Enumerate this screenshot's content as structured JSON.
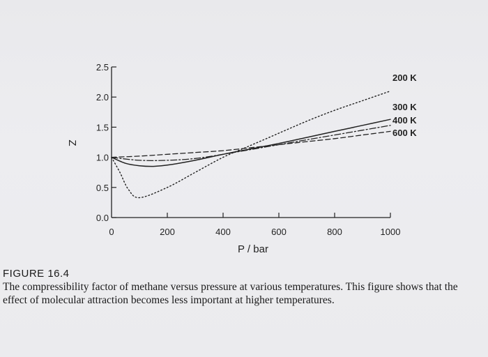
{
  "chart_data": {
    "type": "line",
    "xlabel": "P / bar",
    "ylabel": "Z",
    "xlim": [
      0,
      1000
    ],
    "ylim": [
      0,
      2.5
    ],
    "x_ticks": [
      "0",
      "200",
      "400",
      "600",
      "800",
      "1000"
    ],
    "y_ticks": [
      "0.0",
      "0.5",
      "1.0",
      "1.5",
      "2.0",
      "2.5"
    ],
    "grid": false,
    "series": [
      {
        "name": "200 K",
        "style": "dotted",
        "x": [
          0,
          30,
          60,
          100,
          200,
          300,
          400,
          500,
          600,
          700,
          800,
          900,
          1000
        ],
        "y": [
          1.0,
          0.75,
          0.47,
          0.33,
          0.5,
          0.75,
          1.0,
          1.2,
          1.4,
          1.6,
          1.78,
          1.94,
          2.1
        ]
      },
      {
        "name": "300 K",
        "style": "solid",
        "x": [
          0,
          50,
          100,
          150,
          200,
          300,
          400,
          500,
          600,
          700,
          800,
          900,
          1000
        ],
        "y": [
          1.0,
          0.9,
          0.86,
          0.85,
          0.87,
          0.95,
          1.05,
          1.14,
          1.23,
          1.33,
          1.43,
          1.53,
          1.63
        ]
      },
      {
        "name": "400 K",
        "style": "dash-dot",
        "x": [
          0,
          100,
          200,
          300,
          400,
          500,
          600,
          700,
          800,
          900,
          1000
        ],
        "y": [
          1.0,
          0.95,
          0.95,
          0.98,
          1.05,
          1.13,
          1.21,
          1.29,
          1.37,
          1.45,
          1.53
        ]
      },
      {
        "name": "600 K",
        "style": "dashed",
        "x": [
          0,
          100,
          200,
          300,
          400,
          500,
          600,
          700,
          800,
          900,
          1000
        ],
        "y": [
          1.0,
          1.02,
          1.05,
          1.08,
          1.11,
          1.16,
          1.21,
          1.26,
          1.31,
          1.37,
          1.43
        ]
      }
    ]
  },
  "caption": {
    "title": "FIGURE 16.4",
    "text": "The compressibility factor of methane versus pressure at various temperatures. This figure shows that the effect of molecular attraction becomes less important at higher temperatures."
  },
  "colors": {
    "ink": "#222222",
    "background": "#ebebee"
  }
}
